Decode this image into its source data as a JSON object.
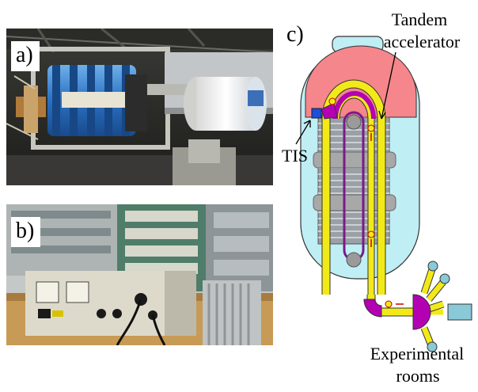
{
  "panel_a": {
    "label": "a)"
  },
  "panel_b": {
    "label": "b)"
  },
  "panel_c": {
    "label": "c)",
    "tandem_label_line1": "Tandem",
    "tandem_label_line2": "accelerator",
    "tis_label": "TIS",
    "experimental_line1": "Experimental",
    "experimental_line2": "rooms"
  },
  "colors": {
    "tank": "#bfeef5",
    "dome": "#f4868c",
    "beamline": "#f2ea18",
    "magnet": "#b300b3",
    "source": "#1f4fd8",
    "port": "#8ac9d8"
  }
}
